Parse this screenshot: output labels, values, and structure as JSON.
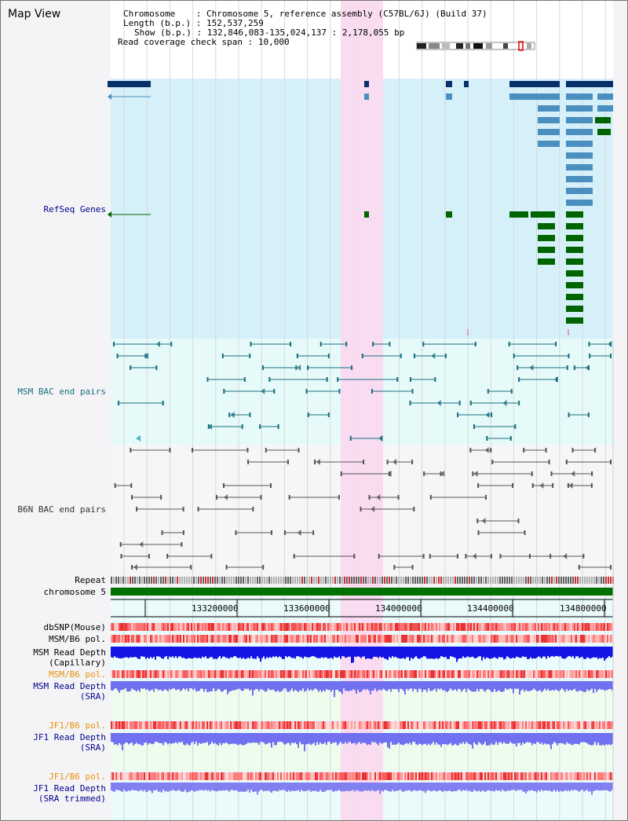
{
  "header": {
    "title": "Map View",
    "chromosome_label": "Chromosome",
    "chromosome_value": "Chromosome 5, reference assembly (C57BL/6J) (Build 37)",
    "length_label": "Length (b.p.)",
    "length_value": "152,537,259",
    "show_label": "Show (b.p.)",
    "show_value": "132,846,083-135,024,137 : 2,178,055 bp",
    "coverage_label": "Read coverage check span",
    "coverage_value": "10,000"
  },
  "tracks": {
    "refseq": "RefSeq Genes",
    "msm_bac": "MSM BAC end pairs",
    "b6n_bac": "B6N BAC end pairs",
    "repeat": "Repeat",
    "chromosome": "chromosome 5",
    "dbsnp": "dbSNP(Mouse)",
    "msm_b6_pol": "MSM/B6 pol.",
    "msm_read_depth": "MSM Read Depth",
    "capillary": "(Capillary)",
    "msm_b6_pol_sra": "MSM/B6 pol.",
    "msm_read_depth_sra": "MSM Read Depth",
    "sra1": "(SRA)",
    "jf1_b6_pol": "JF1/B6 pol.",
    "jf1_read_depth": "JF1 Read Depth",
    "sra2": "(SRA)",
    "jf1_b6_pol_trim": "JF1/B6 pol.",
    "jf1_read_depth_trim": "JF1 Read Depth",
    "sra_trimmed": "(SRA trimmed)"
  },
  "axis": {
    "ticks": [
      "133200000",
      "133600000",
      "134000000",
      "134400000",
      "134800000"
    ]
  },
  "colors": {
    "refseq_bg": "#d6f0fa",
    "msm_bg": "#e6fafa",
    "highlight": "#fadaf0",
    "navy_gene": "#08306b",
    "blue_gene": "#4a8fbf",
    "green_gene": "#006400",
    "msm_line": "#1a6e7e",
    "b6n_line": "#555555",
    "chromosome_bar": "#007000",
    "depth_blue": "#1414e6",
    "depth_purple": "#7070f0"
  }
}
